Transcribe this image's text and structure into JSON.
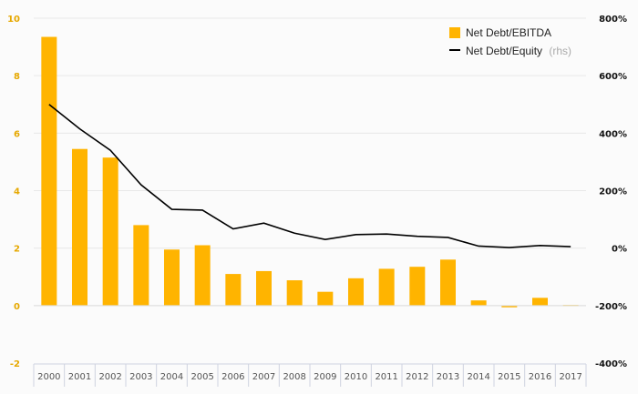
{
  "chart_data": {
    "type": "bar",
    "categories": [
      "2000",
      "2001",
      "2002",
      "2003",
      "2004",
      "2005",
      "2006",
      "2007",
      "2008",
      "2009",
      "2010",
      "2011",
      "2012",
      "2013",
      "2014",
      "2015",
      "2016",
      "2017"
    ],
    "series": [
      {
        "name": "Net Debt/EBITDA",
        "type": "bar",
        "axis": "left",
        "color": "#ffb400",
        "values": [
          9.35,
          5.45,
          5.15,
          2.8,
          1.95,
          2.1,
          1.1,
          1.2,
          0.88,
          0.48,
          0.95,
          1.28,
          1.35,
          1.6,
          0.18,
          -0.06,
          0.27,
          0.02
        ]
      },
      {
        "name": "Net Debt/Equity",
        "name_suffix": "(rhs)",
        "type": "line",
        "axis": "right",
        "color": "#000000",
        "values": [
          500,
          415,
          340,
          220,
          135,
          132,
          67,
          87,
          52,
          30,
          47,
          49,
          41,
          37,
          7,
          2,
          9,
          5
        ]
      }
    ],
    "y_left": {
      "ylim": [
        -2,
        10
      ],
      "ticks": [
        -2,
        0,
        2,
        4,
        6,
        8,
        10
      ],
      "tick_labels": [
        "-2",
        "0",
        "2",
        "4",
        "6",
        "8",
        "10"
      ]
    },
    "y_right": {
      "ylim": [
        -400,
        800
      ],
      "ticks": [
        -400,
        -200,
        0,
        200,
        400,
        600,
        800
      ],
      "tick_labels": [
        "-400%",
        "-200%",
        "0%",
        "200%",
        "400%",
        "600%",
        "800%"
      ]
    },
    "grid": true,
    "legend_position": "top-right"
  }
}
